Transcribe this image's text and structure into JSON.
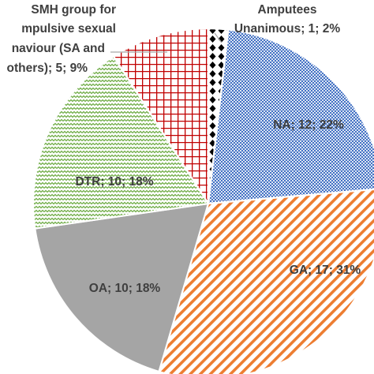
{
  "chart_data": {
    "type": "pie",
    "slices": [
      {
        "name": "Amputees Unanimous",
        "value": 1,
        "percent": 2,
        "label_lines": [
          "Amputees",
          "Unanimous; 1; 2%"
        ],
        "fill": "#000000",
        "pattern": "diamond-dots"
      },
      {
        "name": "NA",
        "value": 12,
        "percent": 22,
        "label_lines": [
          "NA; 12; 22%"
        ],
        "fill": "#4472c4",
        "pattern": "fine-dots"
      },
      {
        "name": "GA",
        "value": 17,
        "percent": 31,
        "label_lines": [
          "GA; 17; 31%"
        ],
        "fill": "#ed7d31",
        "pattern": "diagonal-stripes"
      },
      {
        "name": "OA",
        "value": 10,
        "percent": 18,
        "label_lines": [
          "OA; 10; 18%"
        ],
        "fill": "#a5a5a5",
        "pattern": "solid"
      },
      {
        "name": "DTR",
        "value": 10,
        "percent": 18,
        "label_lines": [
          "DTR; 10; 18%"
        ],
        "fill": "#70ad47",
        "pattern": "zigzag"
      },
      {
        "name": "SMH group for compulsive sexual behaviour (SA and others)",
        "value": 5,
        "percent": 9,
        "label_lines": [
          "SMH group for",
          "mpulsive sexual",
          "naviour (SA and",
          "others); 5; 9%"
        ],
        "fill": "#c00000",
        "pattern": "grid"
      }
    ]
  }
}
